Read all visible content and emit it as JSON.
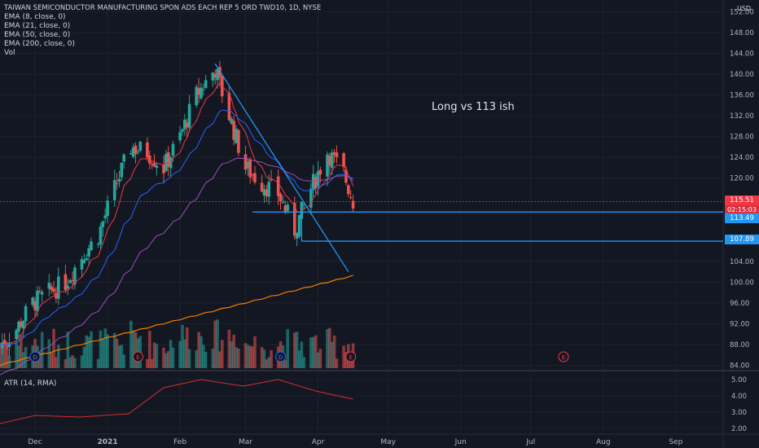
{
  "header": {
    "symbol_title": "TAIWAN SEMICONDUCTOR MANUFACTURING SPON ADS EACH REP 5 ORD TWD10, 1D, NYSE",
    "indicators": [
      "EMA (8, close, 0)",
      "EMA (21, close, 0)",
      "EMA (50, close, 0)",
      "EMA (200, close, 0)",
      "Vol"
    ],
    "atr_label": "ATR (14, RMA)",
    "currency": "USD"
  },
  "annotation": "Long vs 113 ish",
  "price_tags": {
    "last_price": "115.51",
    "countdown": "02:15:03",
    "level_1": "113.49",
    "level_2": "107.89"
  },
  "colors": {
    "background": "#131722",
    "up": "#26a69a",
    "down": "#ef5350",
    "ema8": "#f23645",
    "ema21": "#2962ff",
    "ema50": "#9c4fb8",
    "ema200": "#f57c00",
    "trendline": "#2196f3",
    "atr": "#d32f2f"
  },
  "chart_data": {
    "type": "candlestick",
    "x_axis_labels": [
      "Dec",
      "2021",
      "Feb",
      "Mar",
      "Apr",
      "May",
      "Jun",
      "Jul",
      "Aug",
      "Sep"
    ],
    "y_axis_labels": [
      "152.00",
      "148.00",
      "144.00",
      "140.00",
      "136.00",
      "132.00",
      "128.00",
      "124.00",
      "120.00",
      "104.00",
      "100.00",
      "96.00",
      "92.00",
      "88.00",
      "84.00"
    ],
    "price_range": [
      83,
      153
    ],
    "atr_axis_labels": [
      "5.00",
      "4.00",
      "3.00",
      "2.00"
    ],
    "atr_range": [
      1.7,
      5.5
    ],
    "price_series": {
      "x": [
        "2020-11-16",
        "2020-11-23",
        "2020-11-30",
        "2020-12-07",
        "2020-12-14",
        "2020-12-21",
        "2020-12-28",
        "2021-01-04",
        "2021-01-11",
        "2021-01-18",
        "2021-01-25",
        "2021-02-01",
        "2021-02-08",
        "2021-02-16",
        "2021-02-22",
        "2021-03-01",
        "2021-03-08",
        "2021-03-15",
        "2021-03-22",
        "2021-03-29",
        "2021-04-05",
        "2021-04-12",
        "2021-04-16"
      ],
      "close": [
        88,
        91,
        96,
        98,
        100,
        105,
        109,
        118,
        126,
        125,
        122,
        128,
        136,
        141,
        132,
        122,
        119,
        117,
        110,
        118,
        125,
        121,
        115.51
      ]
    },
    "horizontal_levels": [
      113.49,
      107.89
    ],
    "trendline": {
      "from": {
        "x": "2021-02-16",
        "y": 142
      },
      "to": {
        "x": "2021-04-14",
        "y": 102
      }
    },
    "markers": [
      {
        "label": "D",
        "x": "2020-12-01"
      },
      {
        "label": "E",
        "x": "2021-01-14"
      },
      {
        "label": "D",
        "x": "2021-03-16"
      },
      {
        "label": "E",
        "x": "2021-04-15"
      },
      {
        "label": "E",
        "x": "2021-07-15"
      }
    ],
    "atr_series": {
      "x": [
        "2020-11-16",
        "2020-12-01",
        "2020-12-20",
        "2021-01-10",
        "2021-01-25",
        "2021-02-10",
        "2021-02-28",
        "2021-03-15",
        "2021-03-31",
        "2021-04-16"
      ],
      "values": [
        2.3,
        2.8,
        2.7,
        2.9,
        4.5,
        5.0,
        4.6,
        5.0,
        4.3,
        3.8
      ]
    }
  }
}
